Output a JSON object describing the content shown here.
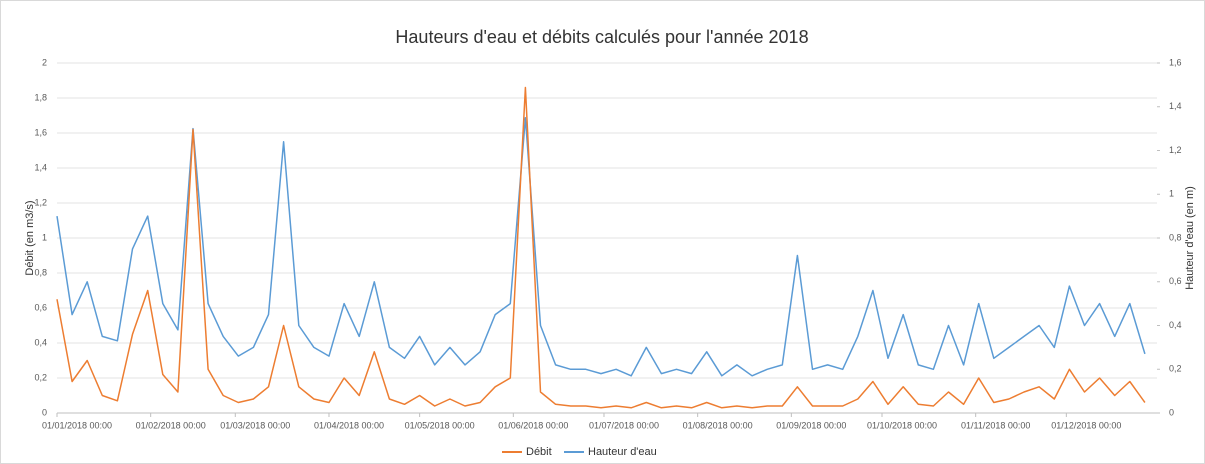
{
  "chart_data": {
    "type": "line",
    "title": "Hauteurs d'eau et débits calculés pour l'année 2018",
    "y_label": "Débit (en m3/s)",
    "y2_label": "Hauteur d'eau (en m)",
    "grid": true,
    "legend": "bottom",
    "xlim": [
      "2018-01-01",
      "2018-12-31"
    ],
    "xticks": [
      {
        "value": "2018-01-01",
        "label": "01/01/2018 00:00"
      },
      {
        "value": "2018-02-01",
        "label": "01/02/2018 00:00"
      },
      {
        "value": "2018-03-01",
        "label": "01/03/2018 00:00"
      },
      {
        "value": "2018-04-01",
        "label": "01/04/2018 00:00"
      },
      {
        "value": "2018-05-01",
        "label": "01/05/2018 00:00"
      },
      {
        "value": "2018-06-01",
        "label": "01/06/2018 00:00"
      },
      {
        "value": "2018-07-01",
        "label": "01/07/2018 00:00"
      },
      {
        "value": "2018-08-01",
        "label": "01/08/2018 00:00"
      },
      {
        "value": "2018-09-01",
        "label": "01/09/2018 00:00"
      },
      {
        "value": "2018-10-01",
        "label": "01/10/2018 00:00"
      },
      {
        "value": "2018-11-01",
        "label": "01/11/2018 00:00"
      },
      {
        "value": "2018-12-01",
        "label": "01/12/2018 00:00"
      }
    ],
    "ylim": [
      0,
      2
    ],
    "yticks": [
      0,
      {
        "value": 0.2,
        "label": "0,2"
      },
      {
        "value": 0.4,
        "label": "0,4"
      },
      {
        "value": 0.6,
        "label": "0,6"
      },
      {
        "value": 0.8,
        "label": "0,8"
      },
      1,
      {
        "value": 1.2,
        "label": "1,2"
      },
      {
        "value": 1.4,
        "label": "1,4"
      },
      {
        "value": 1.6,
        "label": "1,6"
      },
      {
        "value": 1.8,
        "label": "1,8"
      },
      2
    ],
    "y2lim": [
      0,
      1.6
    ],
    "y2ticks": [
      0,
      {
        "value": 0.2,
        "label": "0,2"
      },
      {
        "value": 0.4,
        "label": "0,4"
      },
      {
        "value": 0.6,
        "label": "0,6"
      },
      {
        "value": 0.8,
        "label": "0,8"
      },
      1,
      {
        "value": 1.2,
        "label": "1,2"
      },
      {
        "value": 1.4,
        "label": "1,4"
      },
      {
        "value": 1.6,
        "label": "1,6"
      }
    ],
    "x": [
      "2018-01-01",
      "2018-01-06",
      "2018-01-11",
      "2018-01-16",
      "2018-01-21",
      "2018-01-26",
      "2018-01-31",
      "2018-02-05",
      "2018-02-10",
      "2018-02-15",
      "2018-02-20",
      "2018-02-25",
      "2018-03-02",
      "2018-03-07",
      "2018-03-12",
      "2018-03-17",
      "2018-03-22",
      "2018-03-27",
      "2018-04-01",
      "2018-04-06",
      "2018-04-11",
      "2018-04-16",
      "2018-04-21",
      "2018-04-26",
      "2018-05-01",
      "2018-05-06",
      "2018-05-11",
      "2018-05-16",
      "2018-05-21",
      "2018-05-26",
      "2018-05-31",
      "2018-06-05",
      "2018-06-10",
      "2018-06-15",
      "2018-06-20",
      "2018-06-25",
      "2018-06-30",
      "2018-07-05",
      "2018-07-10",
      "2018-07-15",
      "2018-07-20",
      "2018-07-25",
      "2018-07-30",
      "2018-08-04",
      "2018-08-09",
      "2018-08-14",
      "2018-08-19",
      "2018-08-24",
      "2018-08-29",
      "2018-09-03",
      "2018-09-08",
      "2018-09-13",
      "2018-09-18",
      "2018-09-23",
      "2018-09-28",
      "2018-10-03",
      "2018-10-08",
      "2018-10-13",
      "2018-10-18",
      "2018-10-23",
      "2018-10-28",
      "2018-11-02",
      "2018-11-07",
      "2018-11-12",
      "2018-11-17",
      "2018-11-22",
      "2018-11-27",
      "2018-12-02",
      "2018-12-07",
      "2018-12-12",
      "2018-12-17",
      "2018-12-22",
      "2018-12-27"
    ],
    "series": [
      {
        "name": "Débit",
        "color": "#ed7d31",
        "axis": "y",
        "values": [
          0.65,
          0.18,
          0.3,
          0.1,
          0.07,
          0.45,
          0.7,
          0.22,
          0.12,
          1.62,
          0.25,
          0.1,
          0.06,
          0.08,
          0.15,
          0.5,
          0.15,
          0.08,
          0.06,
          0.2,
          0.1,
          0.35,
          0.08,
          0.05,
          0.1,
          0.04,
          0.08,
          0.04,
          0.06,
          0.15,
          0.2,
          1.86,
          0.12,
          0.05,
          0.04,
          0.04,
          0.03,
          0.04,
          0.03,
          0.06,
          0.03,
          0.04,
          0.03,
          0.06,
          0.03,
          0.04,
          0.03,
          0.04,
          0.04,
          0.15,
          0.04,
          0.04,
          0.04,
          0.08,
          0.18,
          0.05,
          0.15,
          0.05,
          0.04,
          0.12,
          0.05,
          0.2,
          0.06,
          0.08,
          0.12,
          0.15,
          0.08,
          0.25,
          0.12,
          0.2,
          0.1,
          0.18,
          0.06
        ]
      },
      {
        "name": "Hauteur d'eau",
        "color": "#5b9bd5",
        "axis": "y2",
        "values": [
          0.9,
          0.45,
          0.6,
          0.35,
          0.33,
          0.75,
          0.9,
          0.5,
          0.38,
          1.3,
          0.5,
          0.35,
          0.26,
          0.3,
          0.45,
          1.24,
          0.4,
          0.3,
          0.26,
          0.5,
          0.35,
          0.6,
          0.3,
          0.25,
          0.35,
          0.22,
          0.3,
          0.22,
          0.28,
          0.45,
          0.5,
          1.35,
          0.4,
          0.22,
          0.2,
          0.2,
          0.18,
          0.2,
          0.17,
          0.3,
          0.18,
          0.2,
          0.18,
          0.28,
          0.17,
          0.22,
          0.17,
          0.2,
          0.22,
          0.72,
          0.2,
          0.22,
          0.2,
          0.35,
          0.56,
          0.25,
          0.45,
          0.22,
          0.2,
          0.4,
          0.22,
          0.5,
          0.25,
          0.3,
          0.35,
          0.4,
          0.3,
          0.58,
          0.4,
          0.5,
          0.35,
          0.5,
          0.27
        ]
      }
    ]
  }
}
